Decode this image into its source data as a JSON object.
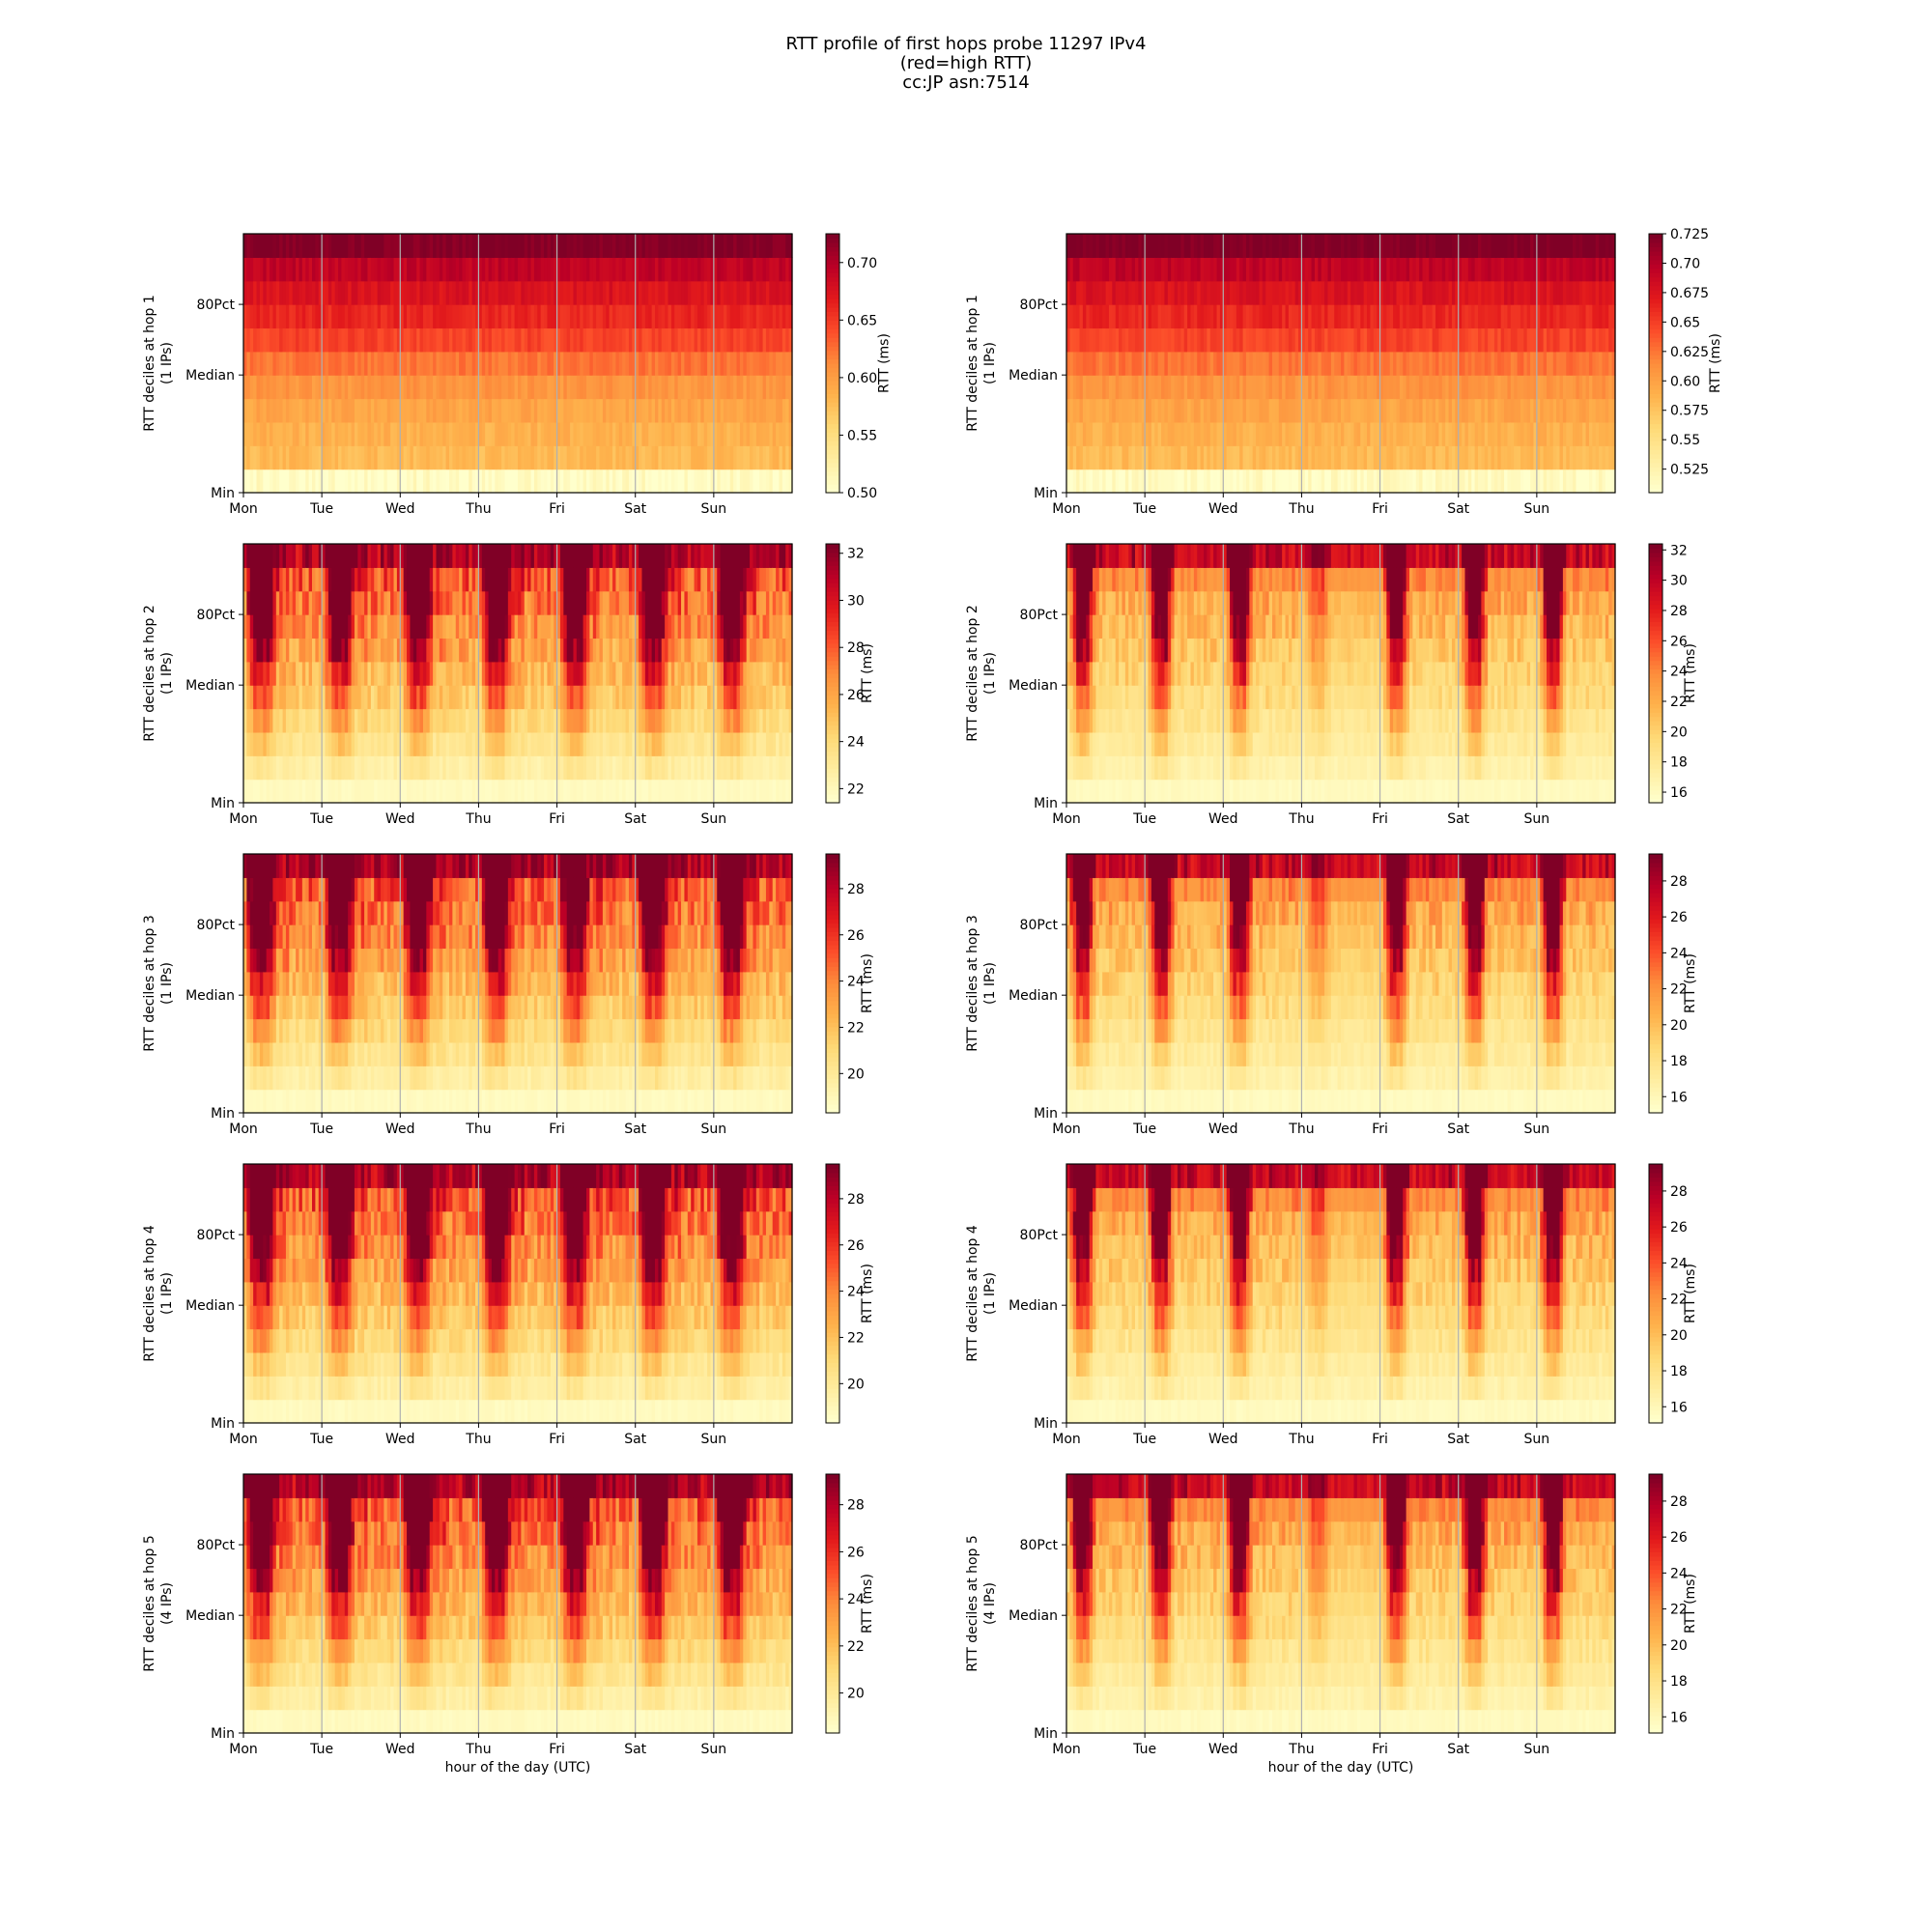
{
  "figure": {
    "title_lines": [
      "RTT profile of first hops probe 11297 IPv4",
      "(red=high RTT)",
      "cc:JP asn:7514"
    ]
  },
  "chart_data": [
    {
      "type": "heatmap",
      "name": "hop 1 left",
      "ylabel": "RTT deciles at hop 1",
      "ylabel2": "(1 IPs)",
      "xlabel": "",
      "yticks": [
        "Min",
        "Median",
        "80Pct"
      ],
      "xticks": [
        "Mon",
        "Tue",
        "Wed",
        "Thu",
        "Fri",
        "Sat",
        "Sun"
      ],
      "colorbar_label": "RTT (ms)",
      "colorbar_ticks": [
        0.5,
        0.55,
        0.6,
        0.65,
        0.7
      ],
      "clim": [
        0.5,
        0.725
      ],
      "pattern": "hop1",
      "seed": 11
    },
    {
      "type": "heatmap",
      "name": "hop 1 right",
      "ylabel": "RTT deciles at hop 1",
      "ylabel2": "(1 IPs)",
      "xlabel": "",
      "yticks": [
        "Min",
        "Median",
        "80Pct"
      ],
      "xticks": [
        "Mon",
        "Tue",
        "Wed",
        "Thu",
        "Fri",
        "Sat",
        "Sun"
      ],
      "colorbar_label": "RTT (ms)",
      "colorbar_ticks": [
        0.525,
        0.55,
        0.575,
        0.6,
        0.625,
        0.65,
        0.675,
        0.7,
        0.725
      ],
      "clim": [
        0.505,
        0.725
      ],
      "pattern": "hop1",
      "seed": 12
    },
    {
      "type": "heatmap",
      "name": "hop 2 left",
      "ylabel": "RTT deciles at hop 2",
      "ylabel2": "(1 IPs)",
      "xlabel": "",
      "yticks": [
        "Min",
        "Median",
        "80Pct"
      ],
      "xticks": [
        "Mon",
        "Tue",
        "Wed",
        "Thu",
        "Fri",
        "Sat",
        "Sun"
      ],
      "colorbar_label": "RTT (ms)",
      "colorbar_ticks": [
        22,
        24,
        26,
        28,
        30,
        32
      ],
      "clim": [
        21.4,
        32.4
      ],
      "pattern": "left",
      "seed": 21
    },
    {
      "type": "heatmap",
      "name": "hop 2 right",
      "ylabel": "RTT deciles at hop 2",
      "ylabel2": "(1 IPs)",
      "xlabel": "",
      "yticks": [
        "Min",
        "Median",
        "80Pct"
      ],
      "xticks": [
        "Mon",
        "Tue",
        "Wed",
        "Thu",
        "Fri",
        "Sat",
        "Sun"
      ],
      "colorbar_label": "RTT (ms)",
      "colorbar_ticks": [
        16,
        18,
        20,
        22,
        24,
        26,
        28,
        30,
        32
      ],
      "clim": [
        15.3,
        32.4
      ],
      "pattern": "right",
      "seed": 22
    },
    {
      "type": "heatmap",
      "name": "hop 3 left",
      "ylabel": "RTT deciles at hop 3",
      "ylabel2": "(1 IPs)",
      "xlabel": "",
      "yticks": [
        "Min",
        "Median",
        "80Pct"
      ],
      "xticks": [
        "Mon",
        "Tue",
        "Wed",
        "Thu",
        "Fri",
        "Sat",
        "Sun"
      ],
      "colorbar_label": "RTT (ms)",
      "colorbar_ticks": [
        20,
        22,
        24,
        26,
        28
      ],
      "clim": [
        18.3,
        29.5
      ],
      "pattern": "left",
      "seed": 31
    },
    {
      "type": "heatmap",
      "name": "hop 3 right",
      "ylabel": "RTT deciles at hop 3",
      "ylabel2": "(1 IPs)",
      "xlabel": "",
      "yticks": [
        "Min",
        "Median",
        "80Pct"
      ],
      "xticks": [
        "Mon",
        "Tue",
        "Wed",
        "Thu",
        "Fri",
        "Sat",
        "Sun"
      ],
      "colorbar_label": "RTT (ms)",
      "colorbar_ticks": [
        16,
        18,
        20,
        22,
        24,
        26,
        28
      ],
      "clim": [
        15.1,
        29.5
      ],
      "pattern": "right",
      "seed": 32
    },
    {
      "type": "heatmap",
      "name": "hop 4 left",
      "ylabel": "RTT deciles at hop 4",
      "ylabel2": "(1 IPs)",
      "xlabel": "",
      "yticks": [
        "Min",
        "Median",
        "80Pct"
      ],
      "xticks": [
        "Mon",
        "Tue",
        "Wed",
        "Thu",
        "Fri",
        "Sat",
        "Sun"
      ],
      "colorbar_label": "RTT (ms)",
      "colorbar_ticks": [
        20,
        22,
        24,
        26,
        28
      ],
      "clim": [
        18.3,
        29.5
      ],
      "pattern": "left",
      "seed": 41
    },
    {
      "type": "heatmap",
      "name": "hop 4 right",
      "ylabel": "RTT deciles at hop 4",
      "ylabel2": "(1 IPs)",
      "xlabel": "",
      "yticks": [
        "Min",
        "Median",
        "80Pct"
      ],
      "xticks": [
        "Mon",
        "Tue",
        "Wed",
        "Thu",
        "Fri",
        "Sat",
        "Sun"
      ],
      "colorbar_label": "RTT (ms)",
      "colorbar_ticks": [
        16,
        18,
        20,
        22,
        24,
        26,
        28
      ],
      "clim": [
        15.1,
        29.5
      ],
      "pattern": "right",
      "seed": 42
    },
    {
      "type": "heatmap",
      "name": "hop 5 left",
      "ylabel": "RTT deciles at hop 5",
      "ylabel2": "(4 IPs)",
      "xlabel": "hour of the day (UTC)",
      "yticks": [
        "Min",
        "Median",
        "80Pct"
      ],
      "xticks": [
        "Mon",
        "Tue",
        "Wed",
        "Thu",
        "Fri",
        "Sat",
        "Sun"
      ],
      "colorbar_label": "RTT (ms)",
      "colorbar_ticks": [
        20,
        22,
        24,
        26,
        28
      ],
      "clim": [
        18.3,
        29.3
      ],
      "pattern": "left",
      "seed": 51
    },
    {
      "type": "heatmap",
      "name": "hop 5 right",
      "ylabel": "RTT deciles at hop 5",
      "ylabel2": "(4 IPs)",
      "xlabel": "hour of the day (UTC)",
      "yticks": [
        "Min",
        "Median",
        "80Pct"
      ],
      "xticks": [
        "Mon",
        "Tue",
        "Wed",
        "Thu",
        "Fri",
        "Sat",
        "Sun"
      ],
      "colorbar_label": "RTT (ms)",
      "colorbar_ticks": [
        16,
        18,
        20,
        22,
        24,
        26,
        28
      ],
      "clim": [
        15.1,
        29.5
      ],
      "pattern": "right",
      "seed": 52
    }
  ]
}
